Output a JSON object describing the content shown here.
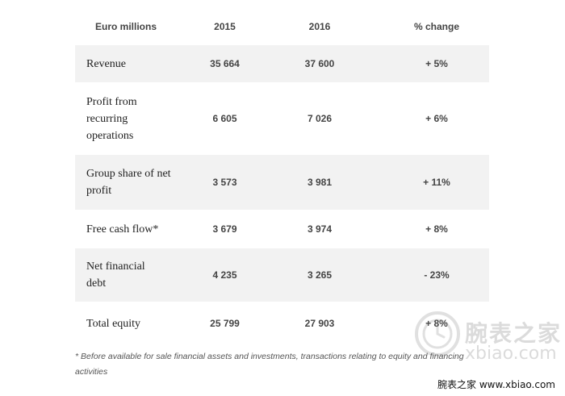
{
  "table": {
    "headers": [
      "Euro millions",
      "2015",
      "2016",
      "% change"
    ],
    "rows": [
      {
        "label": "Revenue",
        "v2015": "35 664",
        "v2016": "37 600",
        "change": "+ 5%"
      },
      {
        "label": "Profit from recurring operations",
        "v2015": "6 605",
        "v2016": "7 026",
        "change": "+ 6%"
      },
      {
        "label": "Group share of net profit",
        "v2015": "3 573",
        "v2016": "3 981",
        "change": "+ 11%"
      },
      {
        "label": "Free cash flow*",
        "v2015": "3 679",
        "v2016": "3 974",
        "change": "+ 8%"
      },
      {
        "label": "Net financial debt",
        "v2015": "4 235",
        "v2016": "3 265",
        "change": "- 23%"
      },
      {
        "label": "Total equity",
        "v2015": "25 799",
        "v2016": "27 903",
        "change": "+ 8%"
      }
    ]
  },
  "footnote": "* Before available for sale financial assets and investments, transactions relating to equity and financing activities",
  "watermark": {
    "brand": "腕表之家",
    "url": "xbiao.com",
    "credit": "腕表之家 www.xbiao.com"
  },
  "colors": {
    "row_shade": "#f2f2f2",
    "text": "#222222"
  }
}
